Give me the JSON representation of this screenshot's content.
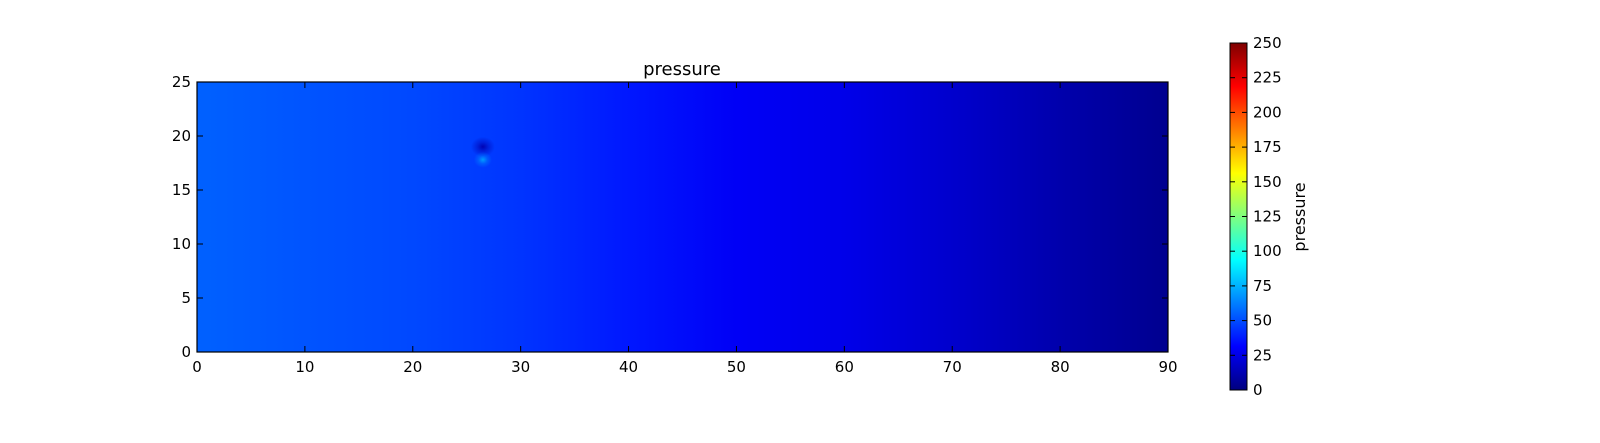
{
  "chart_data": {
    "type": "heatmap",
    "title": "pressure",
    "xlabel": "",
    "ylabel": "",
    "xlim": [
      0,
      90
    ],
    "ylim": [
      0,
      25
    ],
    "x_ticks": [
      0,
      10,
      20,
      30,
      40,
      50,
      60,
      70,
      80,
      90
    ],
    "y_ticks": [
      0,
      5,
      10,
      15,
      20,
      25
    ],
    "grid": false,
    "colormap": "jet",
    "colorbar": {
      "label": "pressure",
      "range": [
        0,
        250
      ],
      "ticks": [
        0,
        25,
        50,
        75,
        100,
        125,
        150,
        175,
        200,
        225,
        250
      ]
    },
    "field_profile": {
      "description_axis": "x",
      "x": [
        0,
        10,
        20,
        30,
        40,
        50,
        60,
        70,
        80,
        90
      ],
      "values": [
        55,
        52,
        49,
        44,
        37,
        29,
        26,
        19,
        11,
        4
      ]
    },
    "anomaly": {
      "x": 26.5,
      "low": {
        "y": 19,
        "value": 12
      },
      "high": {
        "y": 17.8,
        "value": 72
      }
    },
    "colors": {
      "jet_stops": [
        "#00007f",
        "#0000ff",
        "#007fff",
        "#00ffff",
        "#7fff7f",
        "#ffff00",
        "#ff7f00",
        "#ff0000",
        "#7f0000"
      ]
    }
  }
}
